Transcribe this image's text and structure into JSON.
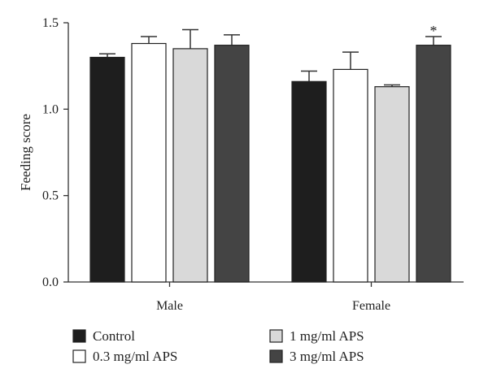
{
  "chart_data": {
    "type": "bar",
    "title": "",
    "xlabel": "",
    "ylabel": "Feeding score",
    "ylim": [
      0,
      1.5
    ],
    "yticks": [
      "0.0",
      "0.5",
      "1.0",
      "1.5"
    ],
    "categories": [
      "Male",
      "Female"
    ],
    "series": [
      {
        "name": "Control",
        "color": "#1e1e1e",
        "values": [
          1.3,
          1.16
        ],
        "errors": [
          0.02,
          0.06
        ]
      },
      {
        "name": "0.3 mg/ml APS",
        "color": "#ffffff",
        "values": [
          1.38,
          1.23
        ],
        "errors": [
          0.04,
          0.1
        ]
      },
      {
        "name": "1 mg/ml APS",
        "color": "#d9d9d9",
        "values": [
          1.35,
          1.13
        ],
        "errors": [
          0.11,
          0.01
        ]
      },
      {
        "name": "3 mg/ml APS",
        "color": "#444444",
        "values": [
          1.37,
          1.37
        ],
        "errors": [
          0.06,
          0.05
        ]
      }
    ],
    "annotations": [
      {
        "category": "Female",
        "series": "3 mg/ml APS",
        "text": "*"
      }
    ],
    "legend": {
      "placement": "bottom",
      "order": [
        "Control",
        "1 mg/ml APS",
        "0.3 mg/ml APS",
        "3 mg/ml APS"
      ]
    }
  }
}
